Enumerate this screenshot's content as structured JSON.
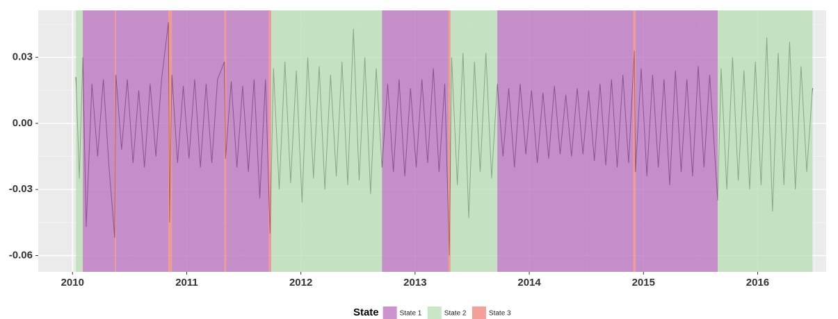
{
  "chart_data": {
    "type": "regime-line",
    "x": [
      2010.03,
      2010.06,
      2010.09,
      2010.12,
      2010.17,
      2010.22,
      2010.27,
      2010.32,
      2010.37,
      2010.38,
      2010.43,
      2010.48,
      2010.53,
      2010.58,
      2010.63,
      2010.68,
      2010.73,
      2010.78,
      2010.84,
      2010.85,
      2010.87,
      2010.92,
      2010.97,
      2011.02,
      2011.07,
      2011.12,
      2011.17,
      2011.22,
      2011.27,
      2011.33,
      2011.34,
      2011.39,
      2011.44,
      2011.49,
      2011.54,
      2011.59,
      2011.64,
      2011.69,
      2011.73,
      2011.76,
      2011.81,
      2011.86,
      2011.91,
      2011.96,
      2012.01,
      2012.06,
      2012.11,
      2012.16,
      2012.21,
      2012.26,
      2012.31,
      2012.36,
      2012.41,
      2012.46,
      2012.51,
      2012.56,
      2012.61,
      2012.66,
      2012.71,
      2012.76,
      2012.81,
      2012.86,
      2012.91,
      2012.96,
      2013.01,
      2013.06,
      2013.11,
      2013.16,
      2013.21,
      2013.26,
      2013.3,
      2013.32,
      2013.37,
      2013.42,
      2013.47,
      2013.52,
      2013.57,
      2013.62,
      2013.67,
      2013.72,
      2013.77,
      2013.82,
      2013.87,
      2013.92,
      2013.97,
      2014.02,
      2014.07,
      2014.12,
      2014.17,
      2014.22,
      2014.27,
      2014.32,
      2014.37,
      2014.42,
      2014.47,
      2014.52,
      2014.57,
      2014.62,
      2014.67,
      2014.72,
      2014.77,
      2014.82,
      2014.87,
      2014.92,
      2014.93,
      2014.98,
      2015.03,
      2015.08,
      2015.13,
      2015.18,
      2015.23,
      2015.28,
      2015.33,
      2015.38,
      2015.43,
      2015.48,
      2015.53,
      2015.58,
      2015.65,
      2015.68,
      2015.73,
      2015.78,
      2015.83,
      2015.88,
      2015.93,
      2015.98,
      2016.03,
      2016.08,
      2016.13,
      2016.18,
      2016.23,
      2016.28,
      2016.33,
      2016.38,
      2016.43,
      2016.48
    ],
    "values": [
      0.021,
      -0.025,
      0.03,
      -0.047,
      0.018,
      -0.015,
      0.02,
      -0.02,
      -0.052,
      0.022,
      -0.012,
      0.02,
      -0.018,
      0.015,
      -0.02,
      0.018,
      -0.015,
      0.02,
      0.046,
      -0.045,
      0.022,
      -0.018,
      0.017,
      -0.016,
      0.02,
      -0.02,
      0.018,
      -0.018,
      0.02,
      0.028,
      -0.016,
      0.019,
      -0.02,
      0.017,
      -0.022,
      0.02,
      -0.034,
      0.02,
      -0.05,
      0.025,
      -0.03,
      0.028,
      -0.027,
      0.024,
      -0.036,
      0.03,
      -0.025,
      0.026,
      -0.03,
      0.022,
      -0.024,
      0.028,
      -0.028,
      0.043,
      -0.026,
      0.03,
      -0.032,
      0.025,
      -0.02,
      0.018,
      -0.022,
      0.02,
      -0.024,
      0.016,
      -0.02,
      0.02,
      -0.018,
      0.025,
      -0.022,
      0.018,
      -0.06,
      0.03,
      -0.028,
      0.032,
      -0.043,
      0.028,
      -0.022,
      0.032,
      -0.025,
      0.018,
      -0.015,
      0.016,
      -0.02,
      0.018,
      -0.014,
      0.015,
      -0.018,
      0.014,
      -0.016,
      0.017,
      -0.014,
      0.013,
      -0.015,
      0.016,
      -0.014,
      0.015,
      -0.017,
      0.018,
      -0.019,
      0.02,
      -0.02,
      0.022,
      -0.018,
      0.033,
      -0.022,
      0.025,
      -0.024,
      0.022,
      -0.02,
      0.02,
      -0.028,
      0.024,
      -0.022,
      0.02,
      -0.024,
      0.026,
      -0.02,
      0.022,
      -0.035,
      0.025,
      -0.03,
      0.03,
      -0.026,
      0.024,
      -0.03,
      0.028,
      -0.028,
      0.039,
      -0.04,
      0.032,
      -0.028,
      0.037,
      -0.03,
      0.026,
      -0.022,
      0.016
    ],
    "line_color": "#000000",
    "legend_title": "State",
    "states": [
      {
        "name": "State 1",
        "color": "#b86fbd",
        "spans": [
          [
            2010.09,
            2010.37
          ],
          [
            2010.38,
            2010.84
          ],
          [
            2010.87,
            2011.33
          ],
          [
            2011.345,
            2011.72
          ],
          [
            2012.71,
            2013.29
          ],
          [
            2013.72,
            2014.91
          ],
          [
            2014.93,
            2015.65
          ]
        ]
      },
      {
        "name": "State 2",
        "color": "#b7ddb3",
        "spans": [
          [
            2010.03,
            2010.09
          ],
          [
            2011.74,
            2012.71
          ],
          [
            2013.31,
            2013.72
          ],
          [
            2015.65,
            2016.48
          ]
        ]
      },
      {
        "name": "State 3",
        "color": "#f08078",
        "spans": [
          [
            2010.37,
            2010.38
          ],
          [
            2010.84,
            2010.87
          ],
          [
            2011.33,
            2011.345
          ],
          [
            2011.72,
            2011.74
          ],
          [
            2013.29,
            2013.31
          ],
          [
            2014.91,
            2014.93
          ]
        ]
      }
    ],
    "xlim": [
      2009.7,
      2016.6
    ],
    "xticks": [
      2010,
      2011,
      2012,
      2013,
      2014,
      2015,
      2016
    ],
    "ylim": [
      -0.0674,
      0.0513
    ],
    "yticks": [
      0.03,
      {
        "value": 0,
        "label": "0.00"
      },
      -0.03,
      -0.06
    ],
    "grid": true,
    "legend_position": "bottom"
  }
}
